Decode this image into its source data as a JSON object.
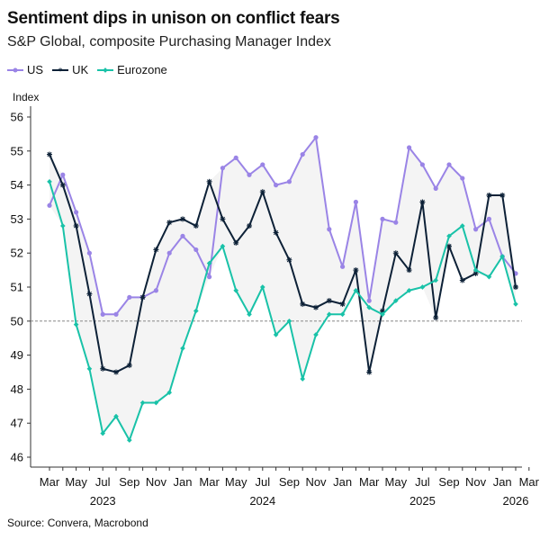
{
  "title": "Sentiment dips in unison on conflict fears",
  "subtitle": "S&P Global, composite Purchasing Manager Index",
  "source": "Source: Convera, Macrobond",
  "colors": {
    "US": "#9a84e6",
    "UK": "#0d2137",
    "Eurozone": "#19c2a8",
    "band": "#f4f4f4",
    "reference": "#888888"
  },
  "chart_data": {
    "type": "line",
    "ylabel": "Index",
    "ylim": [
      46,
      56
    ],
    "yticks": [
      46,
      47,
      48,
      49,
      50,
      51,
      52,
      53,
      54,
      55,
      56
    ],
    "reference_line": 50,
    "x": [
      "2023-03",
      "2023-04",
      "2023-05",
      "2023-06",
      "2023-07",
      "2023-08",
      "2023-09",
      "2023-10",
      "2023-11",
      "2023-12",
      "2024-01",
      "2024-02",
      "2024-03",
      "2024-04",
      "2024-05",
      "2024-06",
      "2024-07",
      "2024-08",
      "2024-09",
      "2024-10",
      "2024-11",
      "2024-12",
      "2025-01",
      "2025-02",
      "2025-03",
      "2025-04",
      "2025-05",
      "2025-06",
      "2025-07",
      "2025-08",
      "2025-09",
      "2025-10",
      "2025-11",
      "2025-12",
      "2026-01",
      "2026-02",
      "2026-03"
    ],
    "xtick_labels": [
      {
        "x": "2023-03",
        "label": "Mar"
      },
      {
        "x": "2023-05",
        "label": "May"
      },
      {
        "x": "2023-07",
        "label": "Jul"
      },
      {
        "x": "2023-09",
        "label": "Sep"
      },
      {
        "x": "2023-11",
        "label": "Nov"
      },
      {
        "x": "2024-01",
        "label": "Jan"
      },
      {
        "x": "2024-03",
        "label": "Mar"
      },
      {
        "x": "2024-05",
        "label": "May"
      },
      {
        "x": "2024-07",
        "label": "Jul"
      },
      {
        "x": "2024-09",
        "label": "Sep"
      },
      {
        "x": "2024-11",
        "label": "Nov"
      },
      {
        "x": "2025-01",
        "label": "Jan"
      },
      {
        "x": "2025-03",
        "label": "Mar"
      },
      {
        "x": "2025-05",
        "label": "May"
      },
      {
        "x": "2025-07",
        "label": "Jul"
      },
      {
        "x": "2025-09",
        "label": "Sep"
      },
      {
        "x": "2025-11",
        "label": "Nov"
      },
      {
        "x": "2026-01",
        "label": "Jan"
      },
      {
        "x": "2026-03",
        "label": "Mar"
      }
    ],
    "year_labels": [
      {
        "x": "2023-07",
        "label": "2023"
      },
      {
        "x": "2024-07",
        "label": "2024"
      },
      {
        "x": "2025-07",
        "label": "2025"
      },
      {
        "x": "2026-02",
        "label": "2026"
      }
    ],
    "series": [
      {
        "name": "US",
        "marker": "circle",
        "values": [
          53.4,
          54.3,
          53.2,
          52.0,
          50.2,
          50.2,
          50.7,
          50.7,
          50.9,
          52.0,
          52.5,
          52.1,
          51.3,
          54.5,
          54.8,
          54.3,
          54.6,
          54.0,
          54.1,
          54.9,
          55.4,
          52.7,
          51.6,
          53.5,
          50.6,
          53.0,
          52.9,
          55.1,
          54.6,
          53.9,
          54.6,
          54.2,
          52.7,
          53.0,
          51.9,
          51.4,
          null
        ]
      },
      {
        "name": "UK",
        "marker": "star",
        "values": [
          54.9,
          54.0,
          52.8,
          50.8,
          48.6,
          48.5,
          48.7,
          50.7,
          52.1,
          52.9,
          53.0,
          52.8,
          54.1,
          53.0,
          52.3,
          52.8,
          53.8,
          52.6,
          51.8,
          50.5,
          50.4,
          50.6,
          50.5,
          51.5,
          48.5,
          50.3,
          52.0,
          51.5,
          53.5,
          50.1,
          52.2,
          51.2,
          51.4,
          53.7,
          53.7,
          51.0,
          null
        ]
      },
      {
        "name": "Eurozone",
        "marker": "diamond",
        "values": [
          54.1,
          52.8,
          49.9,
          48.6,
          46.7,
          47.2,
          46.5,
          47.6,
          47.6,
          47.9,
          49.2,
          50.3,
          51.7,
          52.2,
          50.9,
          50.2,
          51.0,
          49.6,
          50.0,
          48.3,
          49.6,
          50.2,
          50.2,
          50.9,
          50.4,
          50.2,
          50.6,
          50.9,
          51.0,
          51.2,
          52.5,
          52.8,
          51.5,
          51.3,
          51.9,
          50.5,
          null
        ]
      }
    ],
    "legend": [
      "US",
      "UK",
      "Eurozone"
    ],
    "legend_position": "top-left",
    "grid": false
  }
}
